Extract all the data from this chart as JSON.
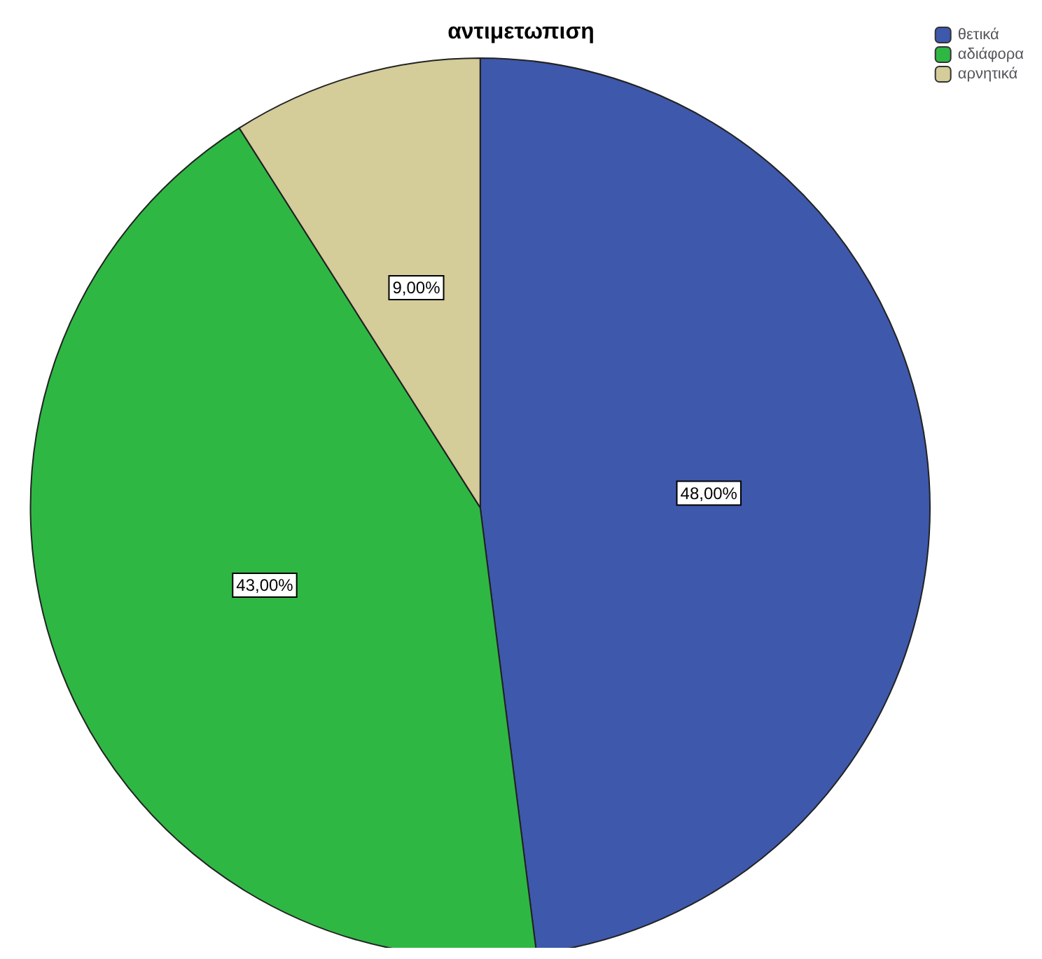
{
  "chart_data": {
    "type": "pie",
    "title": "αντιμετωπιση",
    "categories": [
      "θετικά",
      "αδιάφορα",
      "αρνητικά"
    ],
    "values": [
      48,
      43,
      9
    ],
    "colors": [
      "#3e58ac",
      "#2fb744",
      "#d4cc99"
    ],
    "value_labels": [
      "48,00%",
      "43,00%",
      "9,00%"
    ],
    "legend": "top right"
  }
}
